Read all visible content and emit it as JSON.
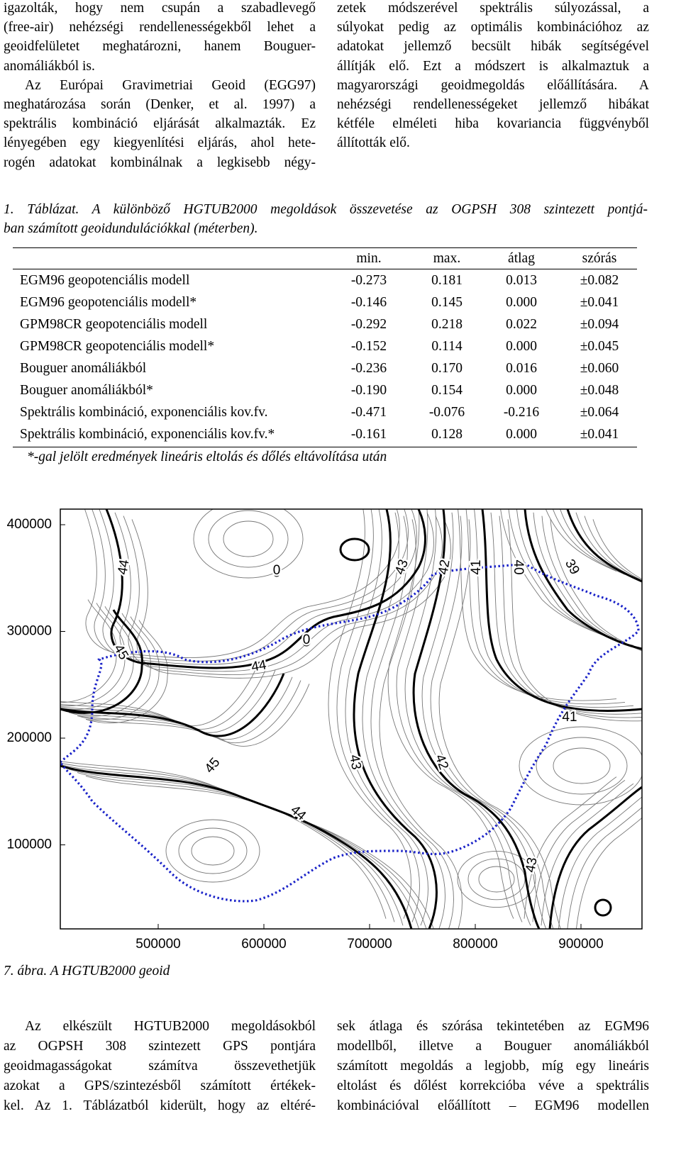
{
  "top_columns": {
    "left": [
      "igazolták, hogy nem csupán a szabadlevegő",
      "(free-air) nehézségi rendellenességekből lehet a",
      "geoidfelületet meghatározni, hanem Bouguer-",
      "anomáliákból is.",
      "Az Európai Gravimetriai Geoid (EGG97)",
      "meghatározása során (Denker, et al. 1997) a",
      "spektrális kombináció eljárását alkalmazták. Ez",
      "lényegében egy kiegyenlítési eljárás, ahol hete-",
      "rogén adatokat kombinálnak a legkisebb négy-"
    ],
    "right": [
      "zetek módszerével spektrális súlyozással, a",
      "súlyokat pedig az optimális kombinációhoz az",
      "adatokat jellemző becsült hibák segítségével",
      "állítják elő. Ezt a módszert is alkalmaztuk a",
      "magyarországi geoidmegoldás előállítására. A",
      "nehézségi rendellenességeket jellemző hibákat",
      "kétféle elméleti hiba kovariancia függvényből",
      "állították elő."
    ]
  },
  "table": {
    "caption_lines": [
      "1. Táblázat. A különböző HGTUB2000 megoldások összevetése az OGPSH 308 szintezett pontjá-",
      "ban számított geoidundulációkkal (méterben)."
    ],
    "header": [
      "min.",
      "max.",
      "átlag",
      "szórás"
    ],
    "rows": [
      [
        "EGM96 geopotenciális modell",
        "-0.273",
        "0.181",
        "0.013",
        "±0.082"
      ],
      [
        "EGM96 geopotenciális modell*",
        "-0.146",
        "0.145",
        "0.000",
        "±0.041"
      ],
      [
        "GPM98CR geopotenciális modell",
        "-0.292",
        "0.218",
        "0.022",
        "±0.094"
      ],
      [
        "GPM98CR geopotenciális modell*",
        "-0.152",
        "0.114",
        "0.000",
        "±0.045"
      ],
      [
        "Bouguer anomáliákból",
        "-0.236",
        "0.170",
        "0.016",
        "±0.060"
      ],
      [
        "Bouguer anomáliákból*",
        "-0.190",
        "0.154",
        "0.000",
        "±0.048"
      ],
      [
        "Spektrális kombináció, exponenciális kov.fv.",
        "-0.471",
        "-0.076",
        "-0.216",
        "±0.064"
      ],
      [
        "Spektrális kombináció, exponenciális kov.fv.*",
        "-0.161",
        "0.128",
        "0.000",
        "±0.041"
      ]
    ],
    "footnote": "*-gal jelölt eredmények lineáris eltolás és dőlés eltávolítása után"
  },
  "figure": {
    "y_tick_labels": [
      "400000",
      "300000",
      "200000",
      "100000"
    ],
    "x_tick_labels": [
      "500000",
      "600000",
      "700000",
      "800000",
      "900000"
    ],
    "contour_labels": [
      "44",
      "45",
      "44",
      "43",
      "42",
      "41",
      "40",
      "39",
      "41",
      "45",
      "43",
      "42",
      "44",
      "43",
      "0",
      "0"
    ],
    "caption": "7. ábra. A HGTUB2000 geoid"
  },
  "bottom_columns": {
    "left": [
      "Az elkészült HGTUB2000 megoldásokból",
      "az OGPSH 308 szintezett GPS pontjára",
      "geoidmagasságokat számítva összevethetjük",
      "azokat a GPS/szintezésből számított értékek-",
      "kel. Az 1. Táblázatból kiderült, hogy az eltéré-"
    ],
    "right": [
      "sek átlaga és szórása tekintetében az EGM96",
      "modellből, illetve a Bouguer anomáliákból",
      "számított megoldás a legjobb, míg egy lineáris",
      "eltolást és dőlést korrekcióba véve a spektrális",
      "kombinációval előállított – EGM96 modellen"
    ]
  }
}
